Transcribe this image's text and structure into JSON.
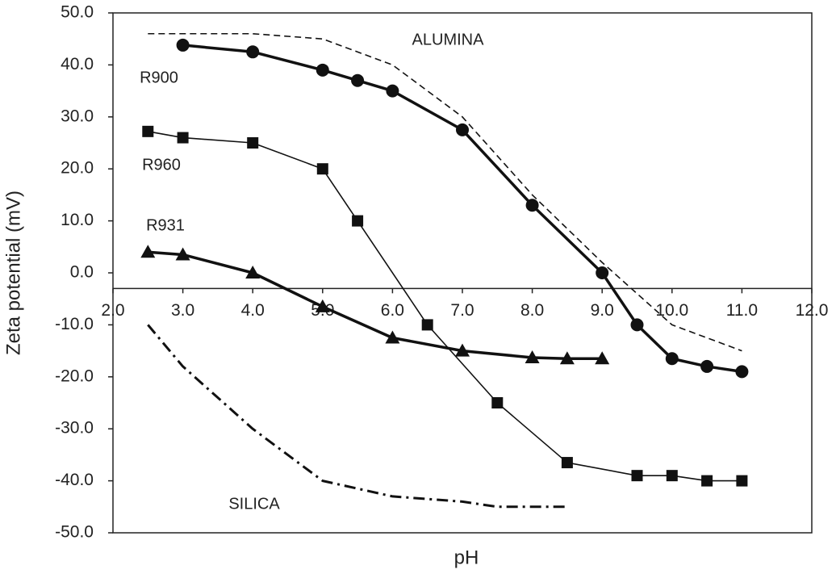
{
  "chart_data": {
    "type": "line",
    "x_label": "pH",
    "y_label": "Zeta potential (mV)",
    "xlim": [
      2.0,
      12.0
    ],
    "ylim": [
      -50.0,
      50.0
    ],
    "x_axis_crossing": -3,
    "xticks": [
      {
        "value": 2,
        "label": "2.0"
      },
      {
        "value": 3,
        "label": "3.0"
      },
      {
        "value": 4,
        "label": "4.0"
      },
      {
        "value": 5,
        "label": "5.0"
      },
      {
        "value": 6,
        "label": "6.0"
      },
      {
        "value": 7,
        "label": "7.0"
      },
      {
        "value": 8,
        "label": "8.0"
      },
      {
        "value": 9,
        "label": "9.0"
      },
      {
        "value": 10,
        "label": "10.0"
      },
      {
        "value": 11,
        "label": "11.0"
      },
      {
        "value": 12,
        "label": "12.0"
      }
    ],
    "yticks": [
      {
        "value": 50,
        "label": "50.0"
      },
      {
        "value": 40,
        "label": "40.0"
      },
      {
        "value": 30,
        "label": "30.0"
      },
      {
        "value": 20,
        "label": "20.0"
      },
      {
        "value": 10,
        "label": "10.0"
      },
      {
        "value": 0,
        "label": "0.0"
      },
      {
        "value": -10,
        "label": "-10.0"
      },
      {
        "value": -20,
        "label": "-20.0"
      },
      {
        "value": -30,
        "label": "-30.0"
      },
      {
        "value": -40,
        "label": "-40.0"
      },
      {
        "value": -50,
        "label": "-50.0"
      }
    ],
    "series": [
      {
        "name": "R900",
        "color": "#111",
        "marker": "circle",
        "style": "thick",
        "x": [
          3.0,
          4.0,
          5.0,
          5.5,
          6.0,
          7.0,
          8.0,
          9.0,
          9.5,
          10.0,
          10.5,
          11.0
        ],
        "values": [
          43.8,
          42.5,
          39,
          37,
          35,
          27.5,
          13,
          0,
          -10,
          -16.5,
          -18,
          -19
        ]
      },
      {
        "name": "R960",
        "color": "#111",
        "marker": "square",
        "style": "thin",
        "x": [
          2.5,
          3.0,
          4.0,
          5.0,
          5.5,
          6.5,
          7.5,
          8.5,
          9.5,
          10.0,
          10.5,
          11.0
        ],
        "values": [
          27.2,
          26,
          25,
          20,
          10,
          -10,
          -25,
          -36.5,
          -39,
          -39,
          -40,
          -40
        ]
      },
      {
        "name": "R931",
        "color": "#111",
        "marker": "triangle",
        "style": "thick",
        "x": [
          2.5,
          3.0,
          4.0,
          5.0,
          6.0,
          7.0,
          8.0,
          8.5,
          9.0
        ],
        "values": [
          4,
          3.5,
          0,
          -6.5,
          -12.5,
          -15,
          -16.3,
          -16.5,
          -16.5
        ]
      },
      {
        "name": "ALUMINA",
        "color": "#111",
        "marker": "none",
        "style": "dashed",
        "x": [
          2.5,
          4.0,
          5.0,
          6.0,
          7.0,
          8.0,
          9.0,
          10.0,
          11.0
        ],
        "values": [
          46,
          46,
          45,
          40,
          30,
          15,
          2,
          -10,
          -15
        ]
      },
      {
        "name": "SILICA",
        "color": "#111",
        "marker": "none",
        "style": "dashdot",
        "x": [
          2.5,
          3.0,
          4.0,
          5.0,
          6.0,
          7.0,
          7.5,
          8.5
        ],
        "values": [
          -10,
          -18,
          -30,
          -40,
          -43,
          -44,
          -45,
          -45
        ]
      }
    ]
  }
}
